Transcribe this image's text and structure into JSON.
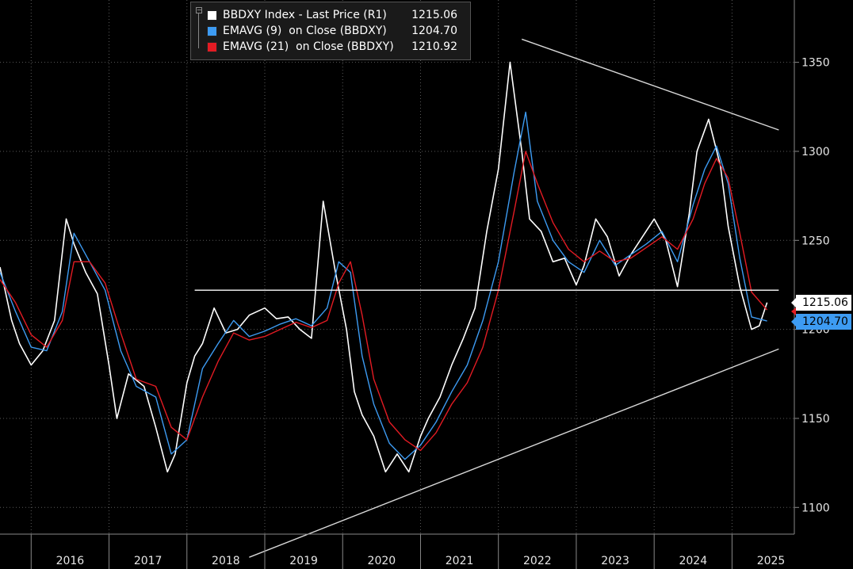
{
  "legend": {
    "items": [
      {
        "label": "BBDXY Index - Last Price (R1)",
        "value": "1215.06",
        "color": "#ffffff"
      },
      {
        "label": "EMAVG (9)  on Close (BBDXY)",
        "value": "1204.70",
        "color": "#3d9bf2"
      },
      {
        "label": "EMAVG (21)  on Close (BBDXY)",
        "value": "1210.92",
        "color": "#e31b23"
      }
    ]
  },
  "price_tags": {
    "last": "1215.06",
    "ema9": "1204.70"
  },
  "chart_data": {
    "type": "line",
    "title": "",
    "xlabel": "",
    "ylabel": "",
    "x_tick_labels": [
      "2016",
      "2017",
      "2018",
      "2019",
      "2020",
      "2021",
      "2022",
      "2023",
      "2024",
      "2025"
    ],
    "y_tick_labels": [
      "1100",
      "1150",
      "1200",
      "1250",
      "1300",
      "1350"
    ],
    "ylim": [
      1085,
      1385
    ],
    "xlim": [
      2015.6,
      2025.8
    ],
    "grid": "dotted",
    "y_axis_side": "right",
    "legend_position": "top-left",
    "series": [
      {
        "name": "BBDXY Index - Last Price (R1)",
        "color": "#ffffff",
        "x": [
          2015.6,
          2015.75,
          2015.85,
          2016.0,
          2016.15,
          2016.3,
          2016.45,
          2016.55,
          2016.7,
          2016.85,
          2017.0,
          2017.1,
          2017.25,
          2017.45,
          2017.6,
          2017.75,
          2017.85,
          2018.0,
          2018.1,
          2018.2,
          2018.35,
          2018.5,
          2018.65,
          2018.8,
          2019.0,
          2019.15,
          2019.3,
          2019.45,
          2019.6,
          2019.75,
          2019.9,
          2020.05,
          2020.15,
          2020.25,
          2020.4,
          2020.55,
          2020.7,
          2020.85,
          2021.0,
          2021.1,
          2021.25,
          2021.4,
          2021.55,
          2021.7,
          2021.85,
          2022.0,
          2022.15,
          2022.3,
          2022.4,
          2022.55,
          2022.7,
          2022.85,
          2023.0,
          2023.1,
          2023.25,
          2023.4,
          2023.55,
          2023.7,
          2023.85,
          2024.0,
          2024.15,
          2024.3,
          2024.45,
          2024.55,
          2024.7,
          2024.85,
          2024.95,
          2025.1,
          2025.25,
          2025.35,
          2025.45
        ],
        "y": [
          1235,
          1205,
          1192,
          1180,
          1188,
          1205,
          1262,
          1248,
          1232,
          1220,
          1180,
          1150,
          1175,
          1168,
          1145,
          1120,
          1130,
          1170,
          1185,
          1192,
          1212,
          1198,
          1200,
          1208,
          1212,
          1206,
          1207,
          1200,
          1195,
          1272,
          1234,
          1200,
          1165,
          1152,
          1140,
          1120,
          1130,
          1120,
          1140,
          1150,
          1162,
          1180,
          1195,
          1212,
          1255,
          1290,
          1350,
          1300,
          1262,
          1255,
          1238,
          1240,
          1225,
          1236,
          1262,
          1252,
          1230,
          1242,
          1252,
          1262,
          1250,
          1224,
          1265,
          1300,
          1318,
          1292,
          1258,
          1224,
          1200,
          1202,
          1215.06
        ]
      },
      {
        "name": "EMAVG (9) on Close (BBDXY)",
        "color": "#3d9bf2",
        "x": [
          2015.6,
          2015.8,
          2016.0,
          2016.2,
          2016.4,
          2016.55,
          2016.75,
          2016.95,
          2017.15,
          2017.35,
          2017.6,
          2017.8,
          2018.0,
          2018.2,
          2018.4,
          2018.6,
          2018.8,
          2019.0,
          2019.2,
          2019.4,
          2019.6,
          2019.8,
          2019.95,
          2020.1,
          2020.25,
          2020.4,
          2020.6,
          2020.8,
          2021.0,
          2021.2,
          2021.4,
          2021.6,
          2021.8,
          2022.0,
          2022.2,
          2022.35,
          2022.5,
          2022.7,
          2022.9,
          2023.1,
          2023.3,
          2023.5,
          2023.7,
          2023.9,
          2024.1,
          2024.3,
          2024.5,
          2024.65,
          2024.8,
          2024.95,
          2025.1,
          2025.25,
          2025.45
        ],
        "y": [
          1232,
          1210,
          1190,
          1188,
          1210,
          1254,
          1238,
          1222,
          1188,
          1168,
          1162,
          1130,
          1138,
          1178,
          1192,
          1205,
          1196,
          1199,
          1203,
          1206,
          1202,
          1212,
          1238,
          1232,
          1185,
          1158,
          1136,
          1127,
          1135,
          1148,
          1165,
          1180,
          1205,
          1238,
          1288,
          1322,
          1272,
          1250,
          1238,
          1232,
          1250,
          1236,
          1242,
          1248,
          1255,
          1238,
          1270,
          1290,
          1303,
          1282,
          1240,
          1207,
          1204.7
        ]
      },
      {
        "name": "EMAVG (21) on Close (BBDXY)",
        "color": "#e31b23",
        "x": [
          2015.6,
          2015.8,
          2016.0,
          2016.2,
          2016.4,
          2016.55,
          2016.75,
          2016.95,
          2017.15,
          2017.35,
          2017.6,
          2017.8,
          2018.0,
          2018.2,
          2018.4,
          2018.6,
          2018.8,
          2019.0,
          2019.2,
          2019.4,
          2019.6,
          2019.8,
          2019.95,
          2020.1,
          2020.25,
          2020.4,
          2020.6,
          2020.8,
          2021.0,
          2021.2,
          2021.4,
          2021.6,
          2021.8,
          2022.0,
          2022.2,
          2022.35,
          2022.5,
          2022.7,
          2022.9,
          2023.1,
          2023.3,
          2023.5,
          2023.7,
          2023.9,
          2024.1,
          2024.3,
          2024.5,
          2024.65,
          2024.8,
          2024.95,
          2025.1,
          2025.25,
          2025.45
        ],
        "y": [
          1228,
          1215,
          1197,
          1190,
          1205,
          1238,
          1238,
          1226,
          1198,
          1172,
          1168,
          1145,
          1138,
          1162,
          1182,
          1198,
          1194,
          1196,
          1200,
          1204,
          1201,
          1205,
          1226,
          1238,
          1208,
          1172,
          1148,
          1138,
          1132,
          1142,
          1158,
          1170,
          1190,
          1222,
          1266,
          1300,
          1282,
          1260,
          1245,
          1238,
          1244,
          1238,
          1240,
          1246,
          1252,
          1245,
          1262,
          1282,
          1296,
          1285,
          1254,
          1221,
          1210.92
        ]
      }
    ],
    "annotations": [
      {
        "type": "horizontal-line",
        "y": 1222,
        "x_start": 2018.1,
        "x_end": 2025.6,
        "color": "#ffffff"
      },
      {
        "type": "trend-line",
        "points": [
          [
            2022.3,
            1363
          ],
          [
            2025.6,
            1312
          ]
        ],
        "color": "#d8d8d8"
      },
      {
        "type": "trend-line",
        "points": [
          [
            2018.8,
            1072
          ],
          [
            2025.6,
            1189
          ]
        ],
        "color": "#d8d8d8"
      }
    ]
  }
}
